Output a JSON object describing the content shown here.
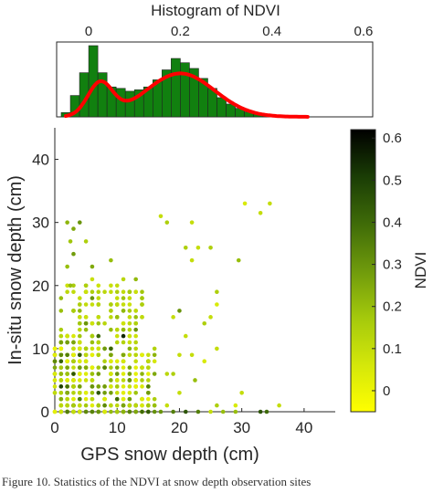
{
  "chart_data": [
    {
      "type": "bar",
      "title": "Histogram of NDVI",
      "xlim": [
        -0.07,
        0.62
      ],
      "xticks": [
        0,
        0.2,
        0.4,
        0.6
      ],
      "xtick_labels": [
        "0",
        "0.2",
        "0.4",
        "0.6"
      ],
      "bin_width": 0.02,
      "bins": [
        {
          "x": -0.06,
          "count": 6
        },
        {
          "x": -0.04,
          "count": 30
        },
        {
          "x": -0.02,
          "count": 62
        },
        {
          "x": 0.0,
          "count": 100
        },
        {
          "x": 0.02,
          "count": 62
        },
        {
          "x": 0.04,
          "count": 42
        },
        {
          "x": 0.06,
          "count": 40
        },
        {
          "x": 0.08,
          "count": 36
        },
        {
          "x": 0.1,
          "count": 38
        },
        {
          "x": 0.12,
          "count": 42
        },
        {
          "x": 0.14,
          "count": 52
        },
        {
          "x": 0.16,
          "count": 66
        },
        {
          "x": 0.18,
          "count": 82
        },
        {
          "x": 0.2,
          "count": 76
        },
        {
          "x": 0.22,
          "count": 68
        },
        {
          "x": 0.24,
          "count": 54
        },
        {
          "x": 0.26,
          "count": 40
        },
        {
          "x": 0.28,
          "count": 27
        },
        {
          "x": 0.3,
          "count": 18
        },
        {
          "x": 0.32,
          "count": 12
        },
        {
          "x": 0.34,
          "count": 7
        },
        {
          "x": 0.36,
          "count": 4
        },
        {
          "x": 0.38,
          "count": 2
        },
        {
          "x": 0.4,
          "count": 1
        },
        {
          "x": 0.42,
          "count": 1
        },
        {
          "x": 0.44,
          "count": 1
        },
        {
          "x": 0.46,
          "count": 0.5
        }
      ],
      "fit_curve": {
        "color": "#ff0000",
        "components": [
          {
            "mean": 0.025,
            "sd": 0.027,
            "amplitude": 46
          },
          {
            "mean": 0.2,
            "sd": 0.075,
            "amplitude": 61
          }
        ]
      },
      "colors": {
        "bar_fill": "#11800f",
        "bar_edge": "#222222"
      }
    },
    {
      "type": "scatter",
      "xlabel": "GPS snow depth (cm)",
      "ylabel": "In-situ snow depth (cm)",
      "xlim": [
        0,
        45
      ],
      "ylim": [
        0,
        45
      ],
      "xticks": [
        0,
        10,
        20,
        30,
        40
      ],
      "yticks": [
        0,
        10,
        20,
        30,
        40
      ],
      "colorbar": {
        "label": "NDVI",
        "range": [
          -0.05,
          0.62
        ],
        "ticks": [
          0,
          0.1,
          0.2,
          0.3,
          0.4,
          0.5,
          0.6
        ],
        "tick_labels": [
          "0",
          "0.1",
          "0.2",
          "0.3",
          "0.4",
          "0.5",
          "0.6"
        ],
        "colormap": [
          "#ffff00",
          "#d4e70a",
          "#a4c90c",
          "#6f9a0c",
          "#3f6b08",
          "#1a3d05",
          "#000000"
        ]
      },
      "points": [
        {
          "x": 2,
          "y": 30,
          "ndvi": 0.22
        },
        {
          "x": 3,
          "y": 29,
          "ndvi": 0.25
        },
        {
          "x": 4,
          "y": 30,
          "ndvi": 0.3
        },
        {
          "x": 2.5,
          "y": 27,
          "ndvi": 0.18
        },
        {
          "x": 5,
          "y": 27,
          "ndvi": 0.15
        },
        {
          "x": 3,
          "y": 25,
          "ndvi": 0.28
        },
        {
          "x": 2,
          "y": 23,
          "ndvi": 0.2
        },
        {
          "x": 6,
          "y": 23,
          "ndvi": 0.25
        },
        {
          "x": 2.5,
          "y": 20,
          "ndvi": 0.2
        },
        {
          "x": 5,
          "y": 20,
          "ndvi": 0.15
        },
        {
          "x": 9,
          "y": 24,
          "ndvi": 0.2
        },
        {
          "x": 8,
          "y": 19,
          "ndvi": 0.12
        },
        {
          "x": 4,
          "y": 17,
          "ndvi": 0.15
        },
        {
          "x": 6,
          "y": 18,
          "ndvi": 0.3
        },
        {
          "x": 1,
          "y": 18,
          "ndvi": 0.2
        },
        {
          "x": 17,
          "y": 31,
          "ndvi": 0.1
        },
        {
          "x": 18,
          "y": 30,
          "ndvi": 0.15
        },
        {
          "x": 22,
          "y": 30,
          "ndvi": 0.1
        },
        {
          "x": 30.5,
          "y": 33,
          "ndvi": 0.05
        },
        {
          "x": 34.5,
          "y": 33,
          "ndvi": 0.1
        },
        {
          "x": 33,
          "y": 31.5,
          "ndvi": 0.1
        },
        {
          "x": 21,
          "y": 26,
          "ndvi": 0.15
        },
        {
          "x": 23,
          "y": 26,
          "ndvi": 0.1
        },
        {
          "x": 25,
          "y": 26,
          "ndvi": 0.15
        },
        {
          "x": 29.5,
          "y": 24,
          "ndvi": 0.2
        },
        {
          "x": 22,
          "y": 24,
          "ndvi": 0.1
        },
        {
          "x": 26,
          "y": 19,
          "ndvi": 0.15
        },
        {
          "x": 26,
          "y": 17,
          "ndvi": 0.05
        },
        {
          "x": 25,
          "y": 15,
          "ndvi": 0.1
        },
        {
          "x": 20,
          "y": 16,
          "ndvi": 0.3
        },
        {
          "x": 24,
          "y": 14,
          "ndvi": 0.15
        },
        {
          "x": 19,
          "y": 15,
          "ndvi": 0.1
        },
        {
          "x": 21,
          "y": 12,
          "ndvi": 0.1
        },
        {
          "x": 20,
          "y": 9,
          "ndvi": 0.1
        },
        {
          "x": 22,
          "y": 9,
          "ndvi": 0.1
        },
        {
          "x": 24,
          "y": 8,
          "ndvi": 0.05
        },
        {
          "x": 26,
          "y": 10,
          "ndvi": 0.1
        },
        {
          "x": 22.5,
          "y": 5,
          "ndvi": 0.2
        },
        {
          "x": 19,
          "y": 6,
          "ndvi": 0.15
        },
        {
          "x": 20,
          "y": 3,
          "ndvi": 0.1
        },
        {
          "x": 30,
          "y": 3,
          "ndvi": 0.1
        },
        {
          "x": 29,
          "y": 1,
          "ndvi": 0.05
        },
        {
          "x": 36,
          "y": 1,
          "ndvi": 0.1
        },
        {
          "x": 26,
          "y": 1,
          "ndvi": 0.15
        },
        {
          "x": 25,
          "y": 0,
          "ndvi": 0.1
        },
        {
          "x": 27,
          "y": 0,
          "ndvi": 0.2
        },
        {
          "x": 29,
          "y": 0,
          "ndvi": 0.2
        },
        {
          "x": 23,
          "y": 0,
          "ndvi": 0.35
        },
        {
          "x": 33,
          "y": 0,
          "ndvi": 0.45
        },
        {
          "x": 34,
          "y": 0,
          "ndvi": 0.4
        },
        {
          "x": 21,
          "y": 0,
          "ndvi": 0.45
        },
        {
          "x": 17,
          "y": 0,
          "ndvi": 0.3
        },
        {
          "x": 19,
          "y": 0,
          "ndvi": 0.35
        },
        {
          "x": 14,
          "y": 0,
          "ndvi": 0.4
        },
        {
          "x": 16,
          "y": 1,
          "ndvi": 0.2
        },
        {
          "x": 18,
          "y": 1,
          "ndvi": 0.1
        },
        {
          "x": 18,
          "y": 6,
          "ndvi": 0.12
        },
        {
          "x": 15,
          "y": 4,
          "ndvi": 0.35
        },
        {
          "x": 11,
          "y": 12,
          "ndvi": 0.55
        },
        {
          "x": 7,
          "y": 12,
          "ndvi": 0.4
        },
        {
          "x": 9,
          "y": 10,
          "ndvi": 0.42
        },
        {
          "x": 3,
          "y": 6,
          "ndvi": 0.45
        },
        {
          "x": 1,
          "y": 4,
          "ndvi": 0.5
        },
        {
          "x": 6,
          "y": 4,
          "ndvi": 0.3
        },
        {
          "x": 2,
          "y": 9,
          "ndvi": 0.35
        },
        {
          "x": 12,
          "y": 5,
          "ndvi": 0.3
        },
        {
          "x": 13,
          "y": 13,
          "ndvi": 0.3
        },
        {
          "x": 5,
          "y": 14,
          "ndvi": 0.3
        },
        {
          "x": 8,
          "y": 7,
          "ndvi": 0.35
        },
        {
          "x": 10,
          "y": 2,
          "ndvi": 0.4
        },
        {
          "x": 4,
          "y": 2,
          "ndvi": 0.35
        },
        {
          "x": 7,
          "y": 3,
          "ndvi": 0.45
        }
      ],
      "cloud_clusters": [
        {
          "x": [
            1,
            14
          ],
          "y": [
            9,
            21
          ],
          "ndvi": [
            0.08,
            0.22
          ],
          "count": 150
        },
        {
          "x": [
            0,
            16
          ],
          "y": [
            0,
            10
          ],
          "ndvi": [
            0.02,
            0.3
          ],
          "count": 240
        },
        {
          "x": [
            0,
            4
          ],
          "y": [
            0,
            12
          ],
          "ndvi": [
            0.0,
            0.45
          ],
          "count": 90
        },
        {
          "x": [
            1,
            16
          ],
          "y": [
            0,
            1
          ],
          "ndvi": [
            0.05,
            0.45
          ],
          "count": 70
        }
      ]
    }
  ],
  "caption": "Figure 10. Statistics of the NDVI at snow depth observation sites"
}
